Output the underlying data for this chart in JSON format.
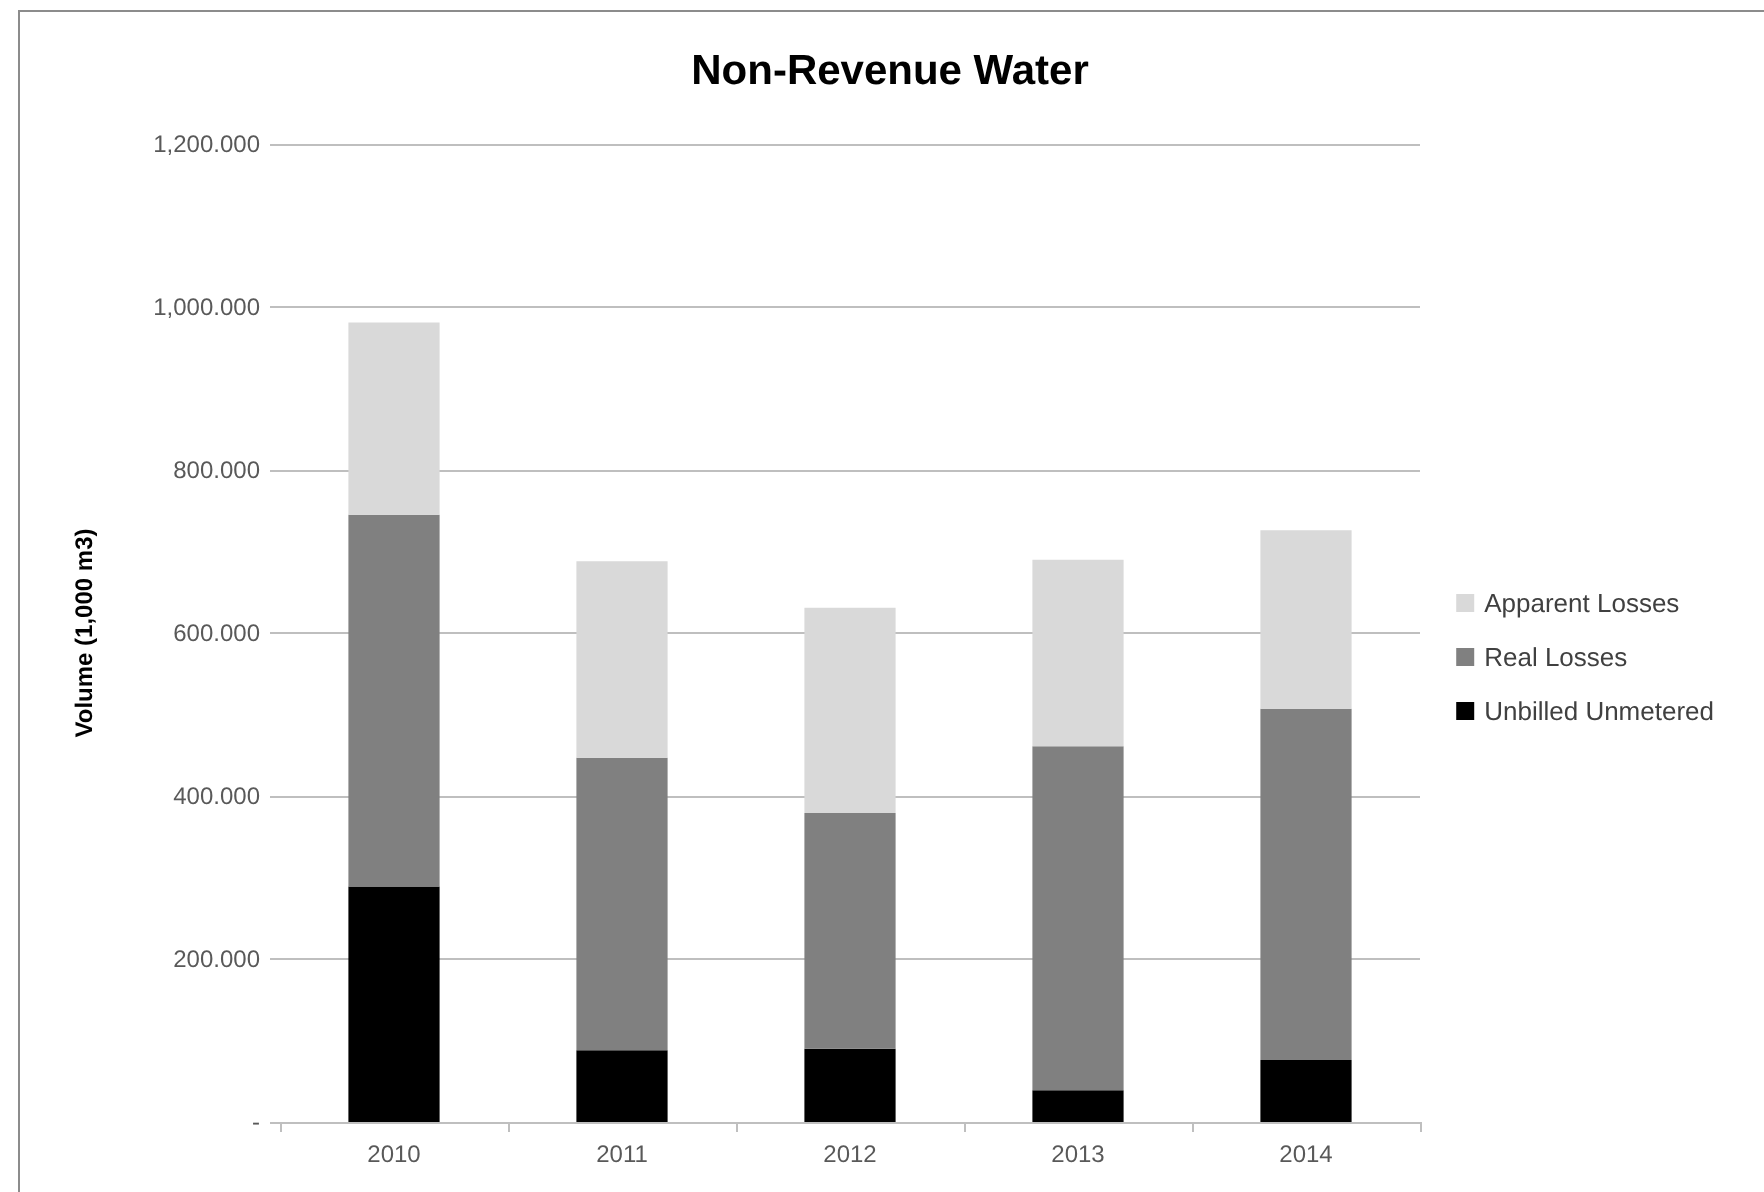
{
  "chart_data": {
    "type": "bar",
    "title": "Non-Revenue Water",
    "ylabel": "Volume (1,000 m3)",
    "categories": [
      "2010",
      "2011",
      "2012",
      "2013",
      "2014"
    ],
    "series": [
      {
        "name": "Unbilled Unmetered",
        "color": "#000000",
        "values": [
          289,
          88,
          90,
          39,
          76
        ]
      },
      {
        "name": "Real Losses",
        "color": "#808080",
        "values": [
          456,
          359,
          289,
          422,
          431
        ]
      },
      {
        "name": "Apparent Losses",
        "color": "#d9d9d9",
        "values": [
          236,
          241,
          252,
          229,
          219
        ]
      }
    ],
    "stacked": true,
    "ylim": [
      0,
      1200
    ],
    "yticks": [
      {
        "value": 0,
        "label": "-"
      },
      {
        "value": 200,
        "label": "200.000"
      },
      {
        "value": 400,
        "label": "400.000"
      },
      {
        "value": 600,
        "label": "600.000"
      },
      {
        "value": 800,
        "label": "800.000"
      },
      {
        "value": 1000,
        "label": "1,000.000"
      },
      {
        "value": 1200,
        "label": "1,200.000"
      }
    ],
    "grid": "y",
    "legend": "right"
  }
}
